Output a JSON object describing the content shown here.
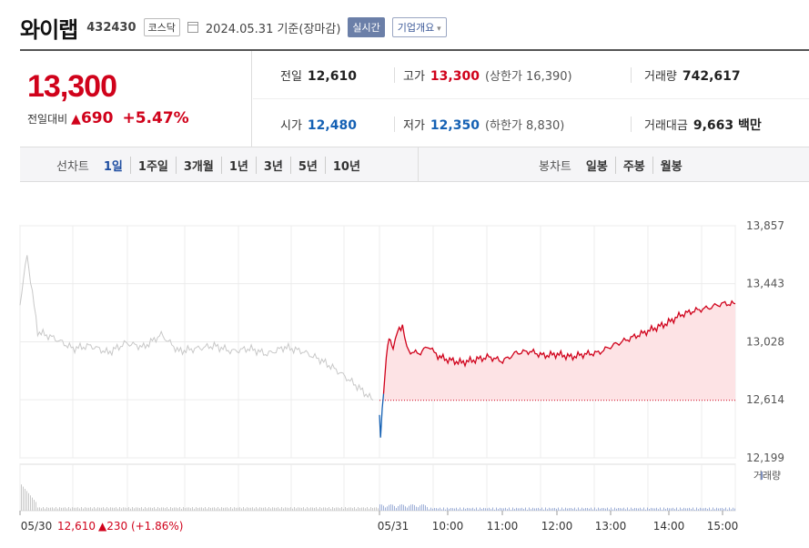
{
  "header": {
    "company_name": "와이랩",
    "code": "432430",
    "market": "코스닥",
    "date": "2024.05.31 기준(장마감)",
    "realtime_label": "실시간",
    "overview_label": "기업개요"
  },
  "quote": {
    "price": "13,300",
    "change_label": "전일대비",
    "change_amount": "690",
    "change_pct": "+5.47%"
  },
  "stats": {
    "prev_label": "전일",
    "prev_value": "12,610",
    "high_label": "고가",
    "high_value": "13,300",
    "upper_limit": "(상한가 16,390)",
    "volume_label": "거래량",
    "volume_value": "742,617",
    "open_label": "시가",
    "open_value": "12,480",
    "low_label": "저가",
    "low_value": "12,350",
    "lower_limit": "(하한가 8,830)",
    "amount_label": "거래대금",
    "amount_value": "9,663 백만"
  },
  "chart_tabs": {
    "line_label": "선차트",
    "line_tabs": [
      "1일",
      "1주일",
      "3개월",
      "1년",
      "3년",
      "5년",
      "10년"
    ],
    "candle_label": "봉차트",
    "candle_tabs": [
      "일봉",
      "주봉",
      "월봉"
    ]
  },
  "chart_data": {
    "type": "line",
    "y_ticks": [
      "13,857",
      "13,443",
      "13,028",
      "12,614",
      "12,199"
    ],
    "ylim": [
      12199,
      13857
    ],
    "baseline": 12610,
    "x_labels": [
      "05/30",
      "05/31",
      "10:00",
      "11:00",
      "12:00",
      "13:00",
      "14:00",
      "15:00"
    ],
    "prev_day_summary": "12,610 ▲230 (+1.86%)",
    "prev_day_date": "05/30",
    "prev_day_price": "12,610",
    "prev_day_change": "▲230 (+1.86%)",
    "volume_legend": "거래량",
    "series": [
      {
        "session": "05/30",
        "x": [
          0,
          0.02,
          0.05,
          0.1,
          0.15,
          0.2,
          0.25,
          0.3,
          0.35,
          0.4,
          0.45,
          0.5,
          0.55,
          0.6,
          0.65,
          0.7,
          0.75,
          0.8,
          0.85,
          0.9,
          0.95,
          1.0
        ],
        "values": [
          13300,
          13650,
          13100,
          13050,
          12980,
          13000,
          12950,
          13020,
          12990,
          13080,
          12960,
          12980,
          13000,
          12960,
          12980,
          12940,
          12990,
          12960,
          12900,
          12820,
          12720,
          12610
        ]
      },
      {
        "session": "05/31",
        "x": [
          9.0,
          9.02,
          9.05,
          9.1,
          9.15,
          9.2,
          9.25,
          9.33,
          9.42,
          9.5,
          9.6,
          9.75,
          9.9,
          10.0,
          10.1,
          10.25,
          10.5,
          10.75,
          11.0,
          11.25,
          11.5,
          11.75,
          12.0,
          12.25,
          12.5,
          12.75,
          13.0,
          13.25,
          13.5,
          13.75,
          14.0,
          14.25,
          14.5,
          14.75,
          15.0,
          15.25,
          15.5
        ],
        "values": [
          12480,
          12350,
          12550,
          12800,
          13000,
          13050,
          12980,
          13100,
          13150,
          12980,
          12950,
          12950,
          13000,
          12950,
          12920,
          12900,
          12880,
          12900,
          12920,
          12890,
          12950,
          12960,
          12930,
          12940,
          12920,
          12940,
          12950,
          13000,
          13040,
          13080,
          13120,
          13160,
          13220,
          13250,
          13270,
          13300,
          13300
        ]
      }
    ]
  },
  "colors": {
    "up": "#d0021b",
    "down": "#1561b4",
    "prev_line": "#c8c8c8",
    "area_fill": "#fde3e5"
  }
}
